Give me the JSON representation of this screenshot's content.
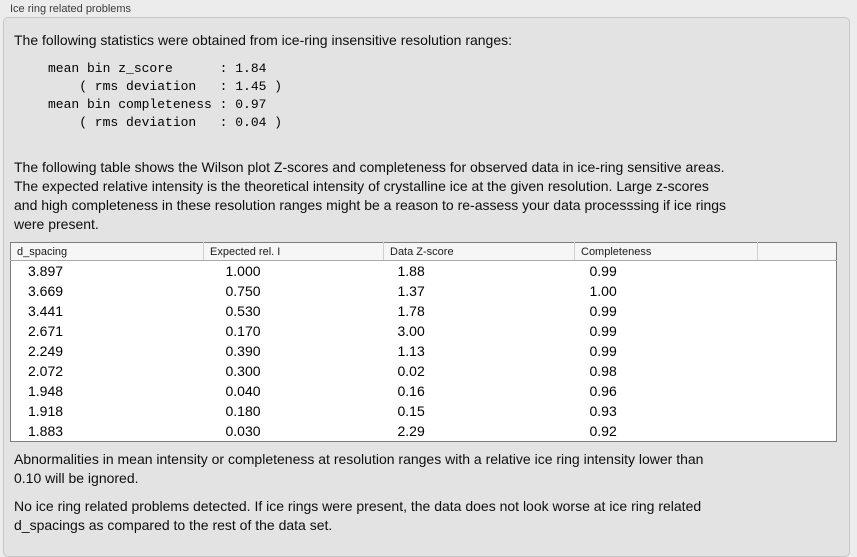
{
  "panel": {
    "title": "Ice ring related problems",
    "intro": "The following statistics were obtained from ice-ring insensitive resolution ranges:",
    "stats_block": "mean bin z_score      : 1.84\n    ( rms deviation   : 1.45 )\nmean bin completeness : 0.97\n    ( rms deviation   : 0.04 )",
    "table_description": "The following table shows the Wilson plot Z-scores and completeness for observed data in ice-ring sensitive areas.\nThe expected relative intensity is the theoretical intensity of crystalline ice at the given resolution. Large z-scores\nand high completeness in these resolution ranges might be a reason to re-assess your data processsing if ice rings\nwere present.",
    "table": {
      "headers": [
        "d_spacing",
        "Expected rel. I",
        "Data Z-score",
        "Completeness"
      ],
      "rows": [
        [
          "3.897",
          "1.000",
          "1.88",
          "0.99"
        ],
        [
          "3.669",
          "0.750",
          "1.37",
          "1.00"
        ],
        [
          "3.441",
          "0.530",
          "1.78",
          "0.99"
        ],
        [
          "2.671",
          "0.170",
          "3.00",
          "0.99"
        ],
        [
          "2.249",
          "0.390",
          "1.13",
          "0.99"
        ],
        [
          "2.072",
          "0.300",
          "0.02",
          "0.98"
        ],
        [
          "1.948",
          "0.040",
          "0.16",
          "0.96"
        ],
        [
          "1.918",
          "0.180",
          "0.15",
          "0.93"
        ],
        [
          "1.883",
          "0.030",
          "2.29",
          "0.92"
        ]
      ]
    },
    "ignore_note": "Abnormalities in mean intensity or completeness at resolution ranges with a relative ice ring intensity lower than\n0.10 will be ignored.",
    "conclusion": "No ice ring related problems detected. If ice rings were present, the data does not look worse at ice ring related\nd_spacings as compared to the rest of the data set."
  },
  "colors": {
    "page_background": "#ececec",
    "panel_background": "#e3e3e3",
    "panel_border": "#c7c7c7",
    "table_background": "#ffffff",
    "table_border": "#7d7d7d",
    "table_header_background": "#f6f6f6"
  }
}
